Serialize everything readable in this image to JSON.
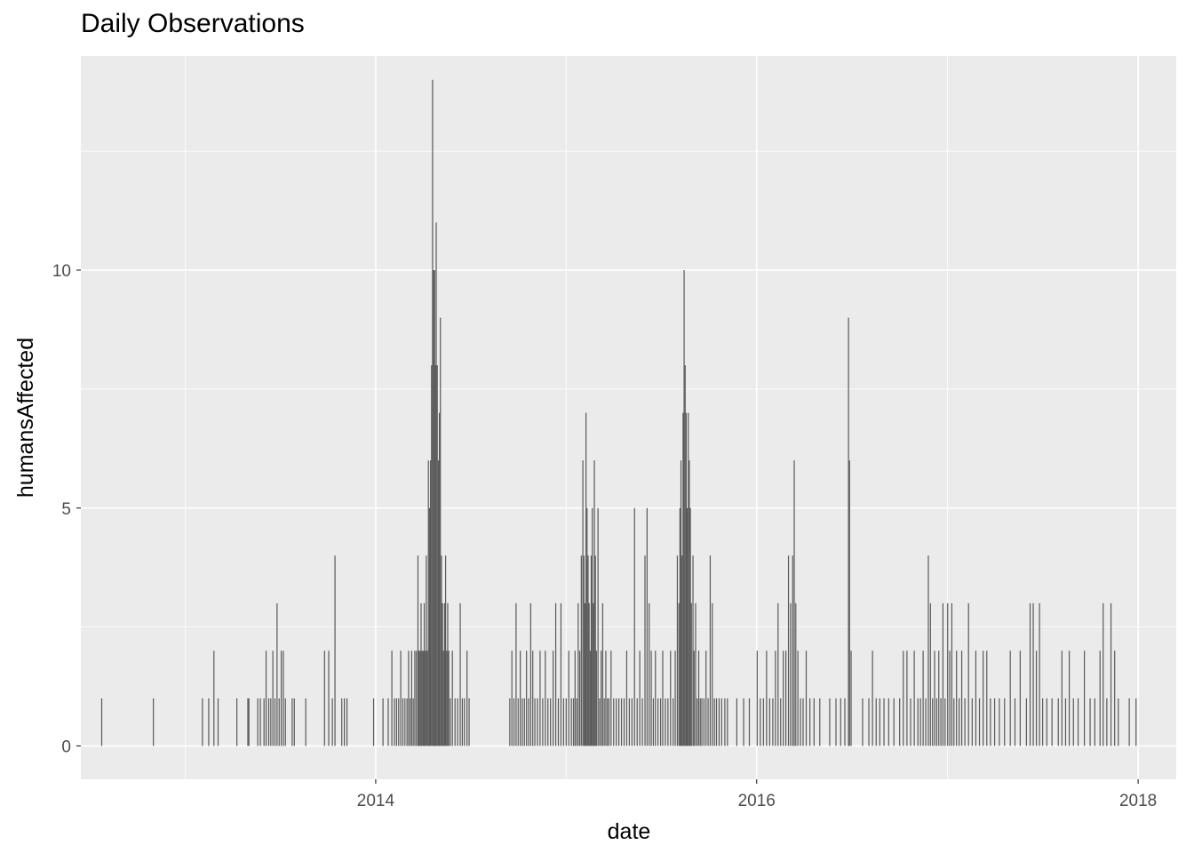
{
  "chart_data": {
    "type": "bar",
    "title": "Daily Observations",
    "xlabel": "date",
    "ylabel": "humansAffected",
    "xlim": [
      "2012-06-15",
      "2018-03-15"
    ],
    "ylim": [
      -0.7,
      14.5
    ],
    "x_ticks": [
      "2014",
      "2016",
      "2018"
    ],
    "y_ticks": [
      "0",
      "5",
      "10"
    ],
    "grid": true,
    "bar_color": "#595959",
    "panel_color": "#ebebeb",
    "grid_color": "#ffffff",
    "observations": [
      [
        "2012-07-25",
        1
      ],
      [
        "2012-11-01",
        1
      ],
      [
        "2013-02-03",
        1
      ],
      [
        "2013-02-15",
        1
      ],
      [
        "2013-02-25",
        2
      ],
      [
        "2013-03-05",
        1
      ],
      [
        "2013-04-10",
        1
      ],
      [
        "2013-05-01",
        1
      ],
      [
        "2013-05-03",
        1
      ],
      [
        "2013-05-20",
        1
      ],
      [
        "2013-05-25",
        1
      ],
      [
        "2013-06-01",
        1
      ],
      [
        "2013-06-05",
        2
      ],
      [
        "2013-06-10",
        1
      ],
      [
        "2013-06-14",
        1
      ],
      [
        "2013-06-18",
        2
      ],
      [
        "2013-06-22",
        1
      ],
      [
        "2013-06-26",
        3
      ],
      [
        "2013-06-30",
        1
      ],
      [
        "2013-07-04",
        2
      ],
      [
        "2013-07-08",
        2
      ],
      [
        "2013-07-12",
        1
      ],
      [
        "2013-07-25",
        1
      ],
      [
        "2013-07-29",
        1
      ],
      [
        "2013-08-20",
        1
      ],
      [
        "2013-09-25",
        2
      ],
      [
        "2013-10-03",
        2
      ],
      [
        "2013-10-10",
        1
      ],
      [
        "2013-10-15",
        4
      ],
      [
        "2013-10-28",
        1
      ],
      [
        "2013-11-02",
        1
      ],
      [
        "2013-11-07",
        1
      ],
      [
        "2013-12-28",
        1
      ],
      [
        "2014-01-15",
        1
      ],
      [
        "2014-01-25",
        1
      ],
      [
        "2014-02-01",
        2
      ],
      [
        "2014-02-06",
        1
      ],
      [
        "2014-02-10",
        1
      ],
      [
        "2014-02-14",
        1
      ],
      [
        "2014-02-18",
        2
      ],
      [
        "2014-02-22",
        1
      ],
      [
        "2014-02-26",
        1
      ],
      [
        "2014-03-02",
        1
      ],
      [
        "2014-03-05",
        2
      ],
      [
        "2014-03-08",
        1
      ],
      [
        "2014-03-11",
        2
      ],
      [
        "2014-03-14",
        1
      ],
      [
        "2014-03-17",
        2
      ],
      [
        "2014-03-20",
        2
      ],
      [
        "2014-03-23",
        4
      ],
      [
        "2014-03-25",
        2
      ],
      [
        "2014-03-27",
        2
      ],
      [
        "2014-03-29",
        3
      ],
      [
        "2014-03-31",
        2
      ],
      [
        "2014-04-02",
        2
      ],
      [
        "2014-04-04",
        3
      ],
      [
        "2014-04-06",
        2
      ],
      [
        "2014-04-08",
        4
      ],
      [
        "2014-04-10",
        2
      ],
      [
        "2014-04-12",
        6
      ],
      [
        "2014-04-14",
        5
      ],
      [
        "2014-04-16",
        6
      ],
      [
        "2014-04-18",
        8
      ],
      [
        "2014-04-20",
        14
      ],
      [
        "2014-04-22",
        10
      ],
      [
        "2014-04-24",
        10
      ],
      [
        "2014-04-25",
        8
      ],
      [
        "2014-04-27",
        11
      ],
      [
        "2014-04-29",
        8
      ],
      [
        "2014-05-01",
        6
      ],
      [
        "2014-05-03",
        7
      ],
      [
        "2014-05-05",
        9
      ],
      [
        "2014-05-07",
        4
      ],
      [
        "2014-05-09",
        3
      ],
      [
        "2014-05-11",
        2
      ],
      [
        "2014-05-13",
        3
      ],
      [
        "2014-05-15",
        4
      ],
      [
        "2014-05-17",
        2
      ],
      [
        "2014-05-19",
        3
      ],
      [
        "2014-05-21",
        2
      ],
      [
        "2014-05-24",
        1
      ],
      [
        "2014-05-28",
        2
      ],
      [
        "2014-06-02",
        1
      ],
      [
        "2014-06-07",
        1
      ],
      [
        "2014-06-12",
        3
      ],
      [
        "2014-06-16",
        1
      ],
      [
        "2014-06-20",
        1
      ],
      [
        "2014-06-25",
        2
      ],
      [
        "2014-06-29",
        1
      ],
      [
        "2014-09-15",
        1
      ],
      [
        "2014-09-19",
        2
      ],
      [
        "2014-09-23",
        1
      ],
      [
        "2014-09-27",
        3
      ],
      [
        "2014-10-01",
        1
      ],
      [
        "2014-10-05",
        2
      ],
      [
        "2014-10-09",
        1
      ],
      [
        "2014-10-13",
        1
      ],
      [
        "2014-10-17",
        2
      ],
      [
        "2014-10-21",
        1
      ],
      [
        "2014-10-25",
        3
      ],
      [
        "2014-10-29",
        2
      ],
      [
        "2014-11-02",
        1
      ],
      [
        "2014-11-07",
        1
      ],
      [
        "2014-11-12",
        2
      ],
      [
        "2014-11-17",
        1
      ],
      [
        "2014-11-22",
        2
      ],
      [
        "2014-11-27",
        1
      ],
      [
        "2014-12-02",
        1
      ],
      [
        "2014-12-07",
        2
      ],
      [
        "2014-12-12",
        3
      ],
      [
        "2014-12-17",
        1
      ],
      [
        "2014-12-22",
        3
      ],
      [
        "2014-12-27",
        1
      ],
      [
        "2015-01-01",
        1
      ],
      [
        "2015-01-06",
        2
      ],
      [
        "2015-01-11",
        1
      ],
      [
        "2015-01-15",
        1
      ],
      [
        "2015-01-18",
        2
      ],
      [
        "2015-01-21",
        1
      ],
      [
        "2015-01-24",
        3
      ],
      [
        "2015-01-27",
        2
      ],
      [
        "2015-01-30",
        4
      ],
      [
        "2015-02-02",
        6
      ],
      [
        "2015-02-04",
        4
      ],
      [
        "2015-02-06",
        3
      ],
      [
        "2015-02-08",
        7
      ],
      [
        "2015-02-10",
        5
      ],
      [
        "2015-02-12",
        4
      ],
      [
        "2015-02-14",
        3
      ],
      [
        "2015-02-16",
        2
      ],
      [
        "2015-02-18",
        4
      ],
      [
        "2015-02-20",
        5
      ],
      [
        "2015-02-22",
        3
      ],
      [
        "2015-02-24",
        6
      ],
      [
        "2015-02-26",
        4
      ],
      [
        "2015-02-28",
        2
      ],
      [
        "2015-03-03",
        5
      ],
      [
        "2015-03-06",
        1
      ],
      [
        "2015-03-09",
        2
      ],
      [
        "2015-03-12",
        3
      ],
      [
        "2015-03-15",
        1
      ],
      [
        "2015-03-18",
        2
      ],
      [
        "2015-03-21",
        1
      ],
      [
        "2015-03-24",
        1
      ],
      [
        "2015-03-28",
        2
      ],
      [
        "2015-04-02",
        1
      ],
      [
        "2015-04-07",
        1
      ],
      [
        "2015-04-12",
        1
      ],
      [
        "2015-04-17",
        1
      ],
      [
        "2015-04-22",
        1
      ],
      [
        "2015-04-27",
        2
      ],
      [
        "2015-05-02",
        1
      ],
      [
        "2015-05-07",
        1
      ],
      [
        "2015-05-12",
        5
      ],
      [
        "2015-05-17",
        1
      ],
      [
        "2015-05-22",
        2
      ],
      [
        "2015-05-27",
        1
      ],
      [
        "2015-06-01",
        4
      ],
      [
        "2015-06-05",
        5
      ],
      [
        "2015-06-09",
        3
      ],
      [
        "2015-06-13",
        2
      ],
      [
        "2015-06-17",
        1
      ],
      [
        "2015-06-21",
        2
      ],
      [
        "2015-06-26",
        1
      ],
      [
        "2015-07-01",
        1
      ],
      [
        "2015-07-05",
        2
      ],
      [
        "2015-07-10",
        1
      ],
      [
        "2015-07-15",
        1
      ],
      [
        "2015-07-20",
        2
      ],
      [
        "2015-07-25",
        1
      ],
      [
        "2015-07-29",
        2
      ],
      [
        "2015-08-02",
        4
      ],
      [
        "2015-08-05",
        3
      ],
      [
        "2015-08-07",
        5
      ],
      [
        "2015-08-09",
        6
      ],
      [
        "2015-08-11",
        4
      ],
      [
        "2015-08-13",
        7
      ],
      [
        "2015-08-15",
        10
      ],
      [
        "2015-08-17",
        8
      ],
      [
        "2015-08-19",
        7
      ],
      [
        "2015-08-21",
        5
      ],
      [
        "2015-08-23",
        7
      ],
      [
        "2015-08-25",
        6
      ],
      [
        "2015-08-27",
        5
      ],
      [
        "2015-08-29",
        3
      ],
      [
        "2015-09-01",
        4
      ],
      [
        "2015-09-03",
        2
      ],
      [
        "2015-09-06",
        3
      ],
      [
        "2015-09-09",
        1
      ],
      [
        "2015-09-12",
        2
      ],
      [
        "2015-09-15",
        1
      ],
      [
        "2015-09-18",
        1
      ],
      [
        "2015-09-22",
        1
      ],
      [
        "2015-09-26",
        2
      ],
      [
        "2015-09-30",
        1
      ],
      [
        "2015-10-04",
        4
      ],
      [
        "2015-10-08",
        3
      ],
      [
        "2015-10-12",
        1
      ],
      [
        "2015-10-16",
        1
      ],
      [
        "2015-10-21",
        1
      ],
      [
        "2015-10-26",
        1
      ],
      [
        "2015-11-01",
        1
      ],
      [
        "2015-11-06",
        1
      ],
      [
        "2015-11-24",
        1
      ],
      [
        "2015-12-07",
        1
      ],
      [
        "2015-12-18",
        1
      ],
      [
        "2016-01-02",
        2
      ],
      [
        "2016-01-08",
        1
      ],
      [
        "2016-01-14",
        1
      ],
      [
        "2016-01-20",
        2
      ],
      [
        "2016-01-26",
        1
      ],
      [
        "2016-02-01",
        1
      ],
      [
        "2016-02-06",
        2
      ],
      [
        "2016-02-11",
        3
      ],
      [
        "2016-02-16",
        1
      ],
      [
        "2016-02-21",
        2
      ],
      [
        "2016-02-26",
        2
      ],
      [
        "2016-03-02",
        4
      ],
      [
        "2016-03-06",
        3
      ],
      [
        "2016-03-10",
        4
      ],
      [
        "2016-03-13",
        6
      ],
      [
        "2016-03-16",
        3
      ],
      [
        "2016-03-20",
        2
      ],
      [
        "2016-03-25",
        1
      ],
      [
        "2016-03-30",
        1
      ],
      [
        "2016-04-05",
        2
      ],
      [
        "2016-04-12",
        1
      ],
      [
        "2016-04-20",
        1
      ],
      [
        "2016-05-01",
        1
      ],
      [
        "2016-05-20",
        1
      ],
      [
        "2016-06-01",
        1
      ],
      [
        "2016-06-10",
        1
      ],
      [
        "2016-06-18",
        1
      ],
      [
        "2016-06-25",
        9
      ],
      [
        "2016-06-27",
        6
      ],
      [
        "2016-06-30",
        2
      ],
      [
        "2016-07-22",
        1
      ],
      [
        "2016-08-03",
        1
      ],
      [
        "2016-08-10",
        2
      ],
      [
        "2016-08-17",
        1
      ],
      [
        "2016-08-24",
        1
      ],
      [
        "2016-09-01",
        1
      ],
      [
        "2016-09-10",
        1
      ],
      [
        "2016-09-20",
        1
      ],
      [
        "2016-10-01",
        1
      ],
      [
        "2016-10-08",
        2
      ],
      [
        "2016-10-15",
        2
      ],
      [
        "2016-10-22",
        1
      ],
      [
        "2016-10-29",
        2
      ],
      [
        "2016-11-05",
        1
      ],
      [
        "2016-11-10",
        1
      ],
      [
        "2016-11-15",
        2
      ],
      [
        "2016-11-20",
        1
      ],
      [
        "2016-11-25",
        4
      ],
      [
        "2016-11-29",
        3
      ],
      [
        "2016-12-03",
        1
      ],
      [
        "2016-12-07",
        2
      ],
      [
        "2016-12-11",
        1
      ],
      [
        "2016-12-15",
        2
      ],
      [
        "2016-12-19",
        1
      ],
      [
        "2016-12-23",
        3
      ],
      [
        "2016-12-27",
        1
      ],
      [
        "2017-01-01",
        3
      ],
      [
        "2017-01-05",
        2
      ],
      [
        "2017-01-09",
        3
      ],
      [
        "2017-01-13",
        1
      ],
      [
        "2017-01-18",
        2
      ],
      [
        "2017-01-23",
        1
      ],
      [
        "2017-01-28",
        2
      ],
      [
        "2017-02-03",
        1
      ],
      [
        "2017-02-10",
        3
      ],
      [
        "2017-02-17",
        1
      ],
      [
        "2017-02-24",
        2
      ],
      [
        "2017-03-03",
        1
      ],
      [
        "2017-03-10",
        2
      ],
      [
        "2017-03-17",
        2
      ],
      [
        "2017-03-24",
        1
      ],
      [
        "2017-04-01",
        1
      ],
      [
        "2017-04-10",
        1
      ],
      [
        "2017-04-20",
        1
      ],
      [
        "2017-05-01",
        2
      ],
      [
        "2017-05-10",
        1
      ],
      [
        "2017-05-20",
        2
      ],
      [
        "2017-06-01",
        1
      ],
      [
        "2017-06-08",
        3
      ],
      [
        "2017-06-14",
        3
      ],
      [
        "2017-06-20",
        2
      ],
      [
        "2017-06-26",
        3
      ],
      [
        "2017-07-02",
        1
      ],
      [
        "2017-07-10",
        1
      ],
      [
        "2017-07-20",
        1
      ],
      [
        "2017-08-01",
        1
      ],
      [
        "2017-08-08",
        2
      ],
      [
        "2017-08-15",
        1
      ],
      [
        "2017-08-22",
        2
      ],
      [
        "2017-08-30",
        1
      ],
      [
        "2017-09-08",
        1
      ],
      [
        "2017-09-20",
        2
      ],
      [
        "2017-10-01",
        1
      ],
      [
        "2017-10-10",
        1
      ],
      [
        "2017-10-20",
        2
      ],
      [
        "2017-10-26",
        3
      ],
      [
        "2017-11-02",
        1
      ],
      [
        "2017-11-10",
        3
      ],
      [
        "2017-11-17",
        2
      ],
      [
        "2017-11-24",
        1
      ],
      [
        "2017-12-15",
        1
      ],
      [
        "2017-12-28",
        1
      ]
    ]
  }
}
